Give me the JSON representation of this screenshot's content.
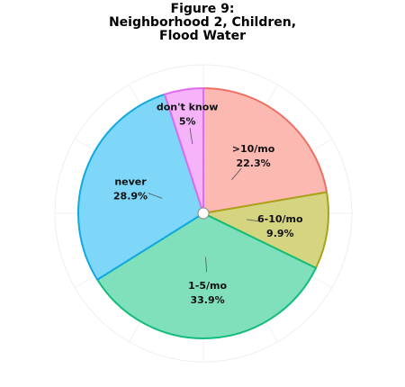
{
  "chart_data": {
    "type": "pie",
    "title_lines": [
      "Figure 9:",
      "Neighborhood 2, Children,",
      "Flood Water"
    ],
    "slices": [
      {
        "label": ">10/mo",
        "value_label": "22.3%",
        "value": 22.3,
        "fill": "#FBB9B2",
        "stroke": "#EE7065"
      },
      {
        "label": "6-10/mo",
        "value_label": "9.9%",
        "value": 9.9,
        "fill": "#D5D481",
        "stroke": "#AAA21A"
      },
      {
        "label": "1-5/mo",
        "value_label": "33.9%",
        "value": 33.9,
        "fill": "#7FE0BB",
        "stroke": "#12BC7A"
      },
      {
        "label": "never",
        "value_label": "28.9%",
        "value": 28.9,
        "fill": "#7ED6F9",
        "stroke": "#12A8E0"
      },
      {
        "label": "don't know",
        "value_label": "5%",
        "value": 5.0,
        "fill": "#F5B3FA",
        "stroke": "#E06BEE"
      }
    ],
    "start_angle_deg": 0,
    "direction": "clockwise",
    "grid": true
  }
}
